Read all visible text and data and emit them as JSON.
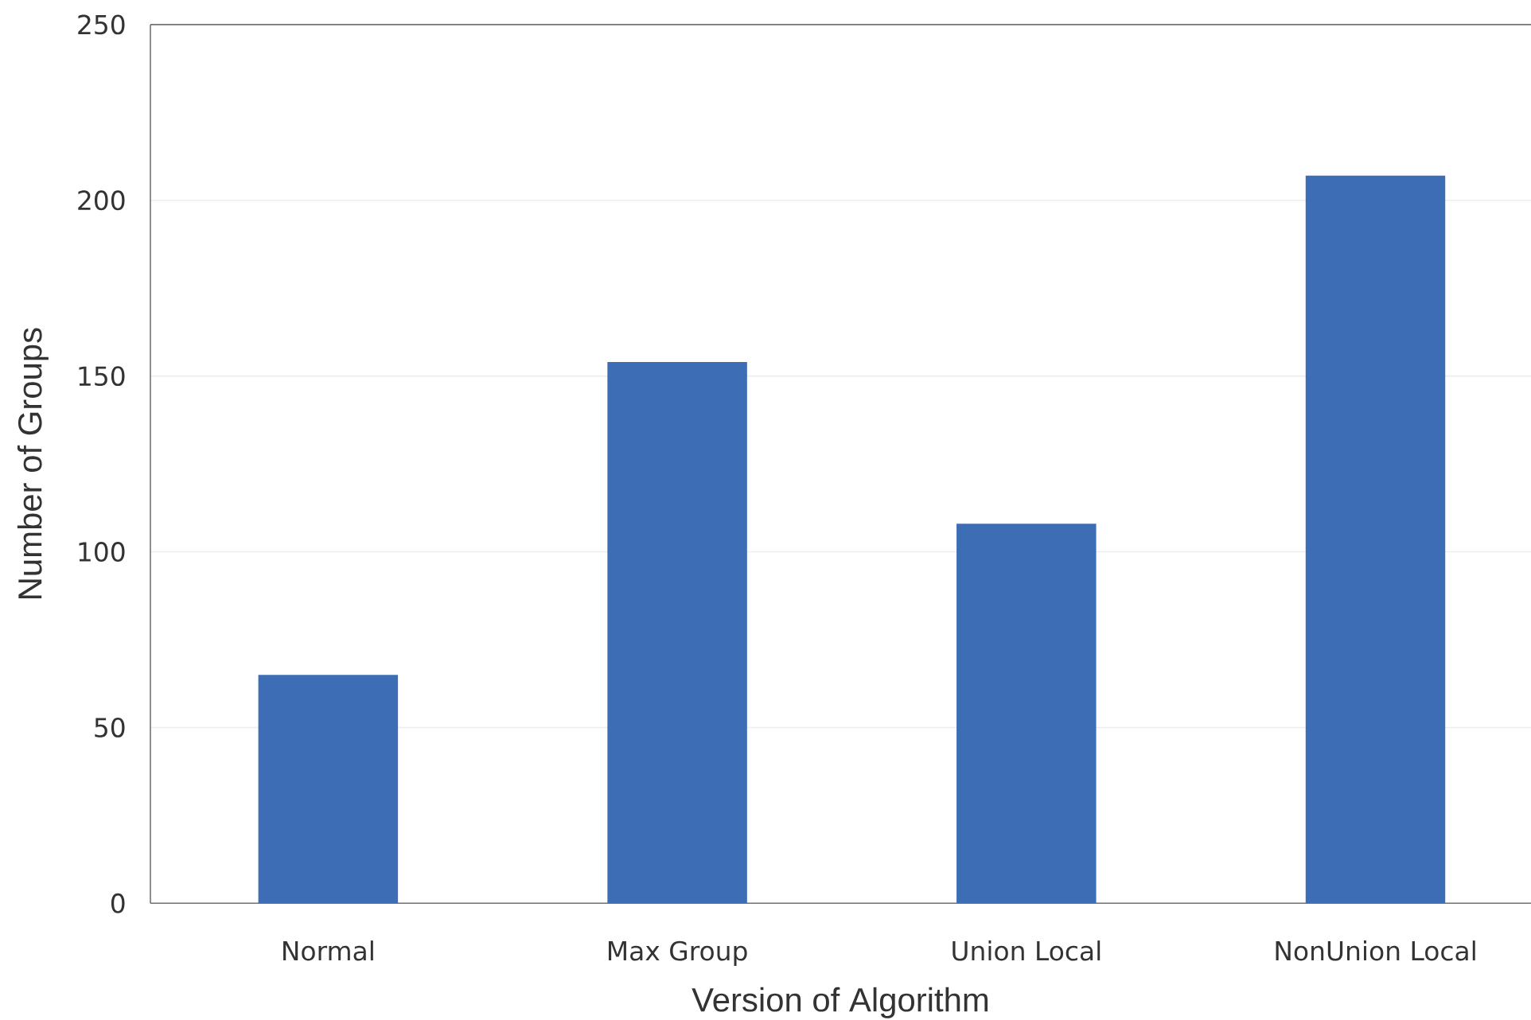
{
  "chart_data": {
    "type": "bar",
    "xlabel": "Version of Algorithm",
    "ylabel": "Number of Groups",
    "categories": [
      "Normal",
      "Max Group",
      "Union Local",
      "NonUnion Local"
    ],
    "values": [
      65,
      154,
      108,
      207
    ],
    "color": "#3d6db4",
    "ylim": [
      0,
      250
    ],
    "yticks": [
      0,
      50,
      100,
      150,
      200,
      250
    ],
    "grid": "y"
  }
}
